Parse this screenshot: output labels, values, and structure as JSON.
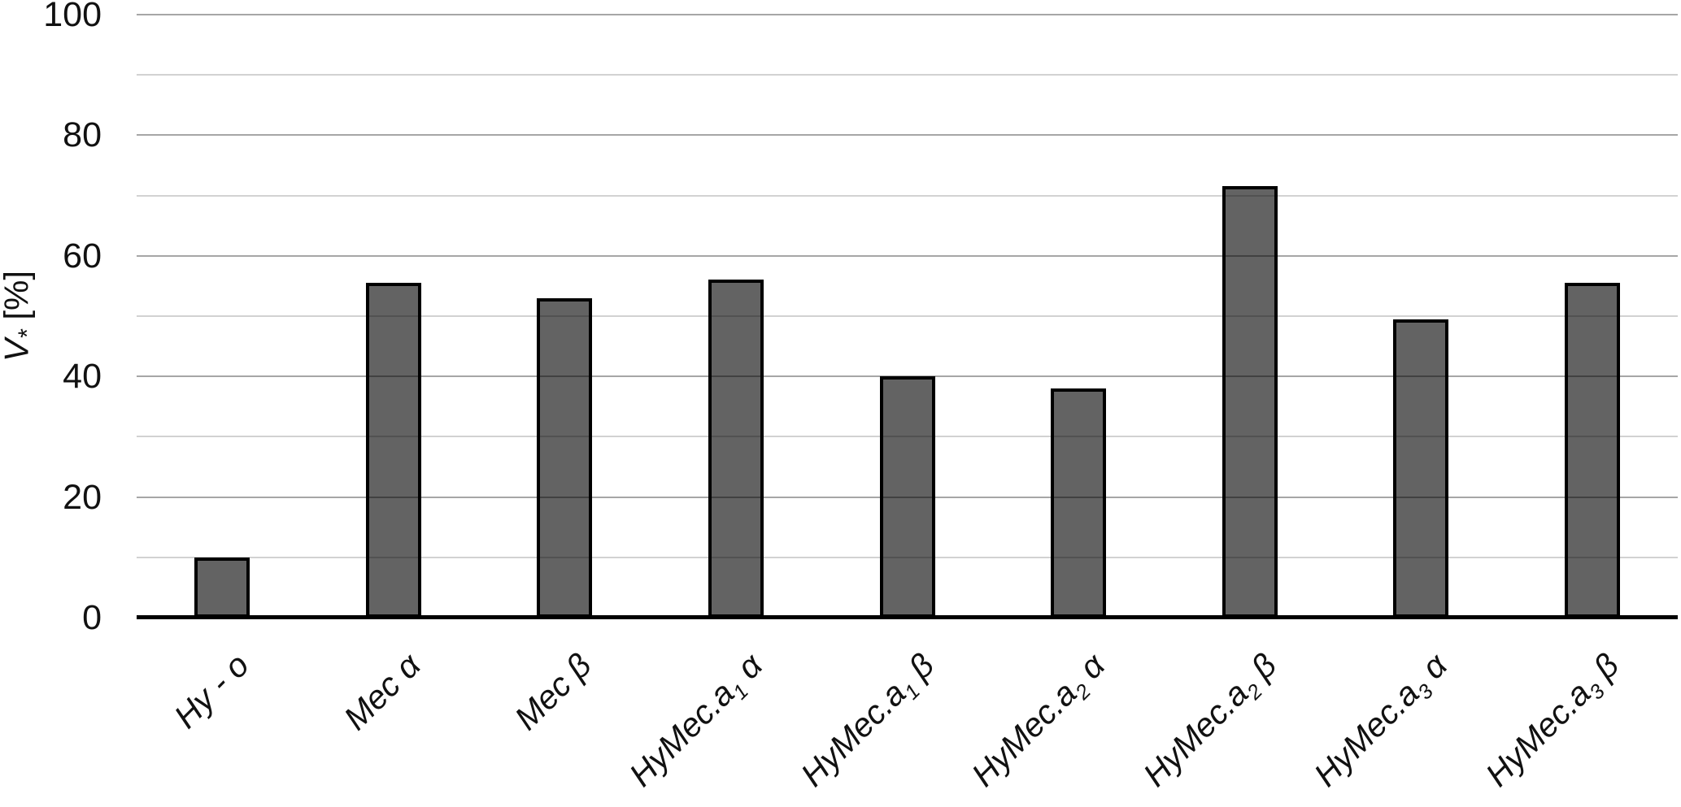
{
  "chart_data": {
    "type": "bar",
    "title": "",
    "xlabel": "",
    "ylabel": {
      "symbol": "V",
      "subscript": "*",
      "unit": " [%]"
    },
    "ylim": [
      0,
      100
    ],
    "y_ticks": [
      0,
      20,
      40,
      60,
      80,
      100
    ],
    "gridlines": {
      "step": 10,
      "major_step": 20,
      "major_color": "#A6A6A6",
      "minor_color": "#D2D2D2",
      "visible": true
    },
    "categories": [
      {
        "pre": "Hy - o",
        "sub": "",
        "post": ""
      },
      {
        "pre": "Mec α",
        "sub": "",
        "post": ""
      },
      {
        "pre": "Mec β",
        "sub": "",
        "post": ""
      },
      {
        "pre": "HyMec.a",
        "sub": "1",
        "post": " α"
      },
      {
        "pre": "HyMec.a",
        "sub": "1",
        "post": " β"
      },
      {
        "pre": "HyMec.a",
        "sub": "2",
        "post": " α"
      },
      {
        "pre": "HyMec.a",
        "sub": "2",
        "post": " β"
      },
      {
        "pre": "HyMec.a",
        "sub": "3",
        "post": " α"
      },
      {
        "pre": "HyMec.a",
        "sub": "3",
        "post": " β"
      }
    ],
    "values": [
      10,
      55.5,
      53,
      56,
      40,
      38,
      71.5,
      49.5,
      55.5
    ],
    "bar_fill": "#636363",
    "bar_border_color": "#000000",
    "axis_color": "#000000",
    "legend_position": "none"
  }
}
